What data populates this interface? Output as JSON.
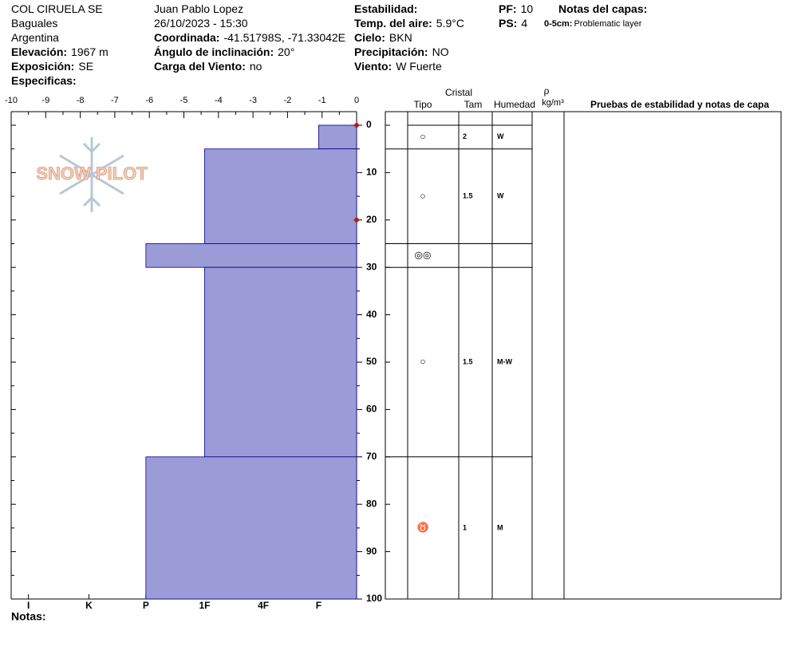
{
  "header": {
    "fields": [
      {
        "label": "COL CIRUELA SE",
        "value": null
      },
      {
        "label": "Baguales",
        "value": null
      },
      {
        "label": "Argentina",
        "value": null
      },
      {
        "label": "Elevación:",
        "value": "1967 m"
      },
      {
        "label": "Exposición:",
        "value": "SE"
      },
      {
        "label": "Especificas:",
        "value": null
      },
      {
        "label": "Juan Pablo  Lopez",
        "value": null
      },
      {
        "label": "26/10/2023 - 15:30",
        "value": null
      },
      {
        "label": "Coordinada:",
        "value": "-41.51798S, -71.33042E"
      },
      {
        "label": "Ángulo de inclinación:",
        "value": "20°"
      },
      {
        "label": "Carga del Viento:",
        "value": "no"
      },
      {
        "label": "Estabilidad:",
        "value": null
      },
      {
        "label": "Temp. del aire:",
        "value": "5.9°C"
      },
      {
        "label": "Cielo:",
        "value": "BKN"
      },
      {
        "label": "Precipitación:",
        "value": "NO"
      },
      {
        "label": "Viento:",
        "value": "W Fuerte"
      },
      {
        "label": "PF:",
        "value": "10"
      },
      {
        "label": "PS:",
        "value": "4"
      },
      {
        "label": "Notas del capas:",
        "value": null
      }
    ],
    "layer_note": {
      "label": "0-5cm:",
      "value": "Problematic layer"
    },
    "logo": "SNOW PILOT"
  },
  "table": {
    "group": "Cristal",
    "columns": [
      "Tipo",
      "Tam",
      "Humedad"
    ],
    "density": "ρ",
    "density_unit": "kg/m³",
    "notes": "Pruebas de estabilidad y notas de capa"
  },
  "footer": {
    "notes": "Notas:"
  },
  "chart_data": {
    "type": "hardness-profile",
    "color": "#9b9bd7",
    "xlim": [
      -10,
      0
    ],
    "xticks": [
      -10,
      -9,
      -8,
      -7,
      -6,
      -5,
      -4,
      -3,
      -2,
      -1,
      0
    ],
    "hardness_ticks": [
      {
        "value": -9.5,
        "label": "I"
      },
      {
        "value": -7.75,
        "label": "K"
      },
      {
        "value": -6.1,
        "label": "P"
      },
      {
        "value": -4.4,
        "label": "1F"
      },
      {
        "value": -2.7,
        "label": "4F"
      },
      {
        "value": -1.1,
        "label": "F"
      }
    ],
    "ylim": [
      0,
      100
    ],
    "yticks": [
      0,
      10,
      20,
      30,
      40,
      50,
      60,
      70,
      80,
      90,
      100
    ],
    "markers": [
      0,
      20
    ],
    "layers": [
      {
        "top": 0,
        "bottom": 5,
        "hardness": -1.1,
        "grain": "○",
        "size": "2",
        "moisture": "W"
      },
      {
        "top": 5,
        "bottom": 25,
        "hardness": -4.4,
        "grain": "○",
        "size": "1.5",
        "moisture": "W"
      },
      {
        "top": 25,
        "bottom": 30,
        "hardness": -6.1,
        "grain": "◎◎",
        "size": null,
        "moisture": null
      },
      {
        "top": 30,
        "bottom": 70,
        "hardness": -4.4,
        "grain": "○",
        "size": "1.5",
        "moisture": "M-W"
      },
      {
        "top": 70,
        "bottom": 100,
        "hardness": -6.1,
        "grain": "♉",
        "size": "1",
        "moisture": "M"
      }
    ]
  }
}
